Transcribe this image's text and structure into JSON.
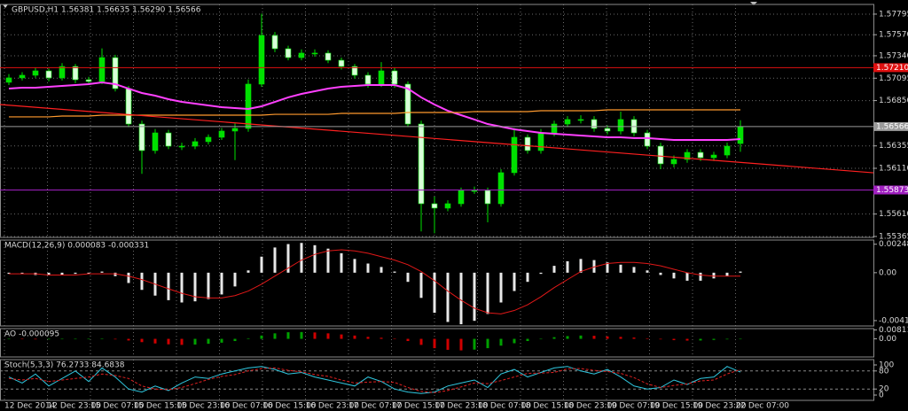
{
  "chart_data": [
    {
      "type": "candlestick",
      "title": "GBPUSD,H1  1.56381 1.56635 1.56290 1.56566",
      "up_color": "#00e000",
      "down_color": "#d8ffd8",
      "open": [
        1.5705,
        1.57098,
        1.57127,
        1.57175,
        1.57098,
        1.57223,
        1.57078,
        1.57059,
        1.5732,
        1.56981,
        1.56594,
        1.56304,
        1.56497,
        1.56352,
        1.56352,
        1.56401,
        1.56449,
        1.56517,
        1.56546,
        1.5703,
        1.57562,
        1.57417,
        1.5732,
        1.57369,
        1.57369,
        1.57291,
        1.57223,
        1.57127,
        1.5703,
        1.57175,
        1.5703,
        1.56594,
        1.55723,
        1.55675,
        1.55723,
        1.55868,
        1.55868,
        1.55723,
        1.56062,
        1.56449,
        1.56304,
        1.56497,
        1.56594,
        1.56643,
        1.56643,
        1.56546,
        1.56517,
        1.56643,
        1.56497,
        1.56352,
        1.56159,
        1.56207,
        1.56284,
        1.56226,
        1.56255,
        1.56381
      ],
      "high": [
        1.5714,
        1.5716,
        1.5721,
        1.572,
        1.5726,
        1.5725,
        1.5711,
        1.5742,
        1.5735,
        1.5701,
        1.5663,
        1.5654,
        1.5653,
        1.5639,
        1.5644,
        1.5648,
        1.5655,
        1.566,
        1.5708,
        1.578,
        1.576,
        1.5745,
        1.5741,
        1.5741,
        1.574,
        1.5732,
        1.5725,
        1.5716,
        1.5727,
        1.5721,
        1.5706,
        1.5663,
        1.558,
        1.5576,
        1.559,
        1.5591,
        1.559,
        1.561,
        1.5655,
        1.5648,
        1.5654,
        1.5663,
        1.5668,
        1.5669,
        1.5668,
        1.5658,
        1.5673,
        1.5668,
        1.5653,
        1.5639,
        1.5625,
        1.5632,
        1.5632,
        1.5629,
        1.5639,
        1.56635
      ],
      "low": [
        1.5702,
        1.5707,
        1.571,
        1.5706,
        1.5707,
        1.5704,
        1.5702,
        1.5703,
        1.5695,
        1.5656,
        1.5605,
        1.5627,
        1.5632,
        1.5631,
        1.5632,
        1.5637,
        1.5642,
        1.562,
        1.5651,
        1.57,
        1.5738,
        1.5729,
        1.5729,
        1.5733,
        1.5726,
        1.5719,
        1.5709,
        1.5699,
        1.57,
        1.5699,
        1.5656,
        1.5542,
        1.554,
        1.5564,
        1.5569,
        1.5583,
        1.5552,
        1.5569,
        1.5603,
        1.5627,
        1.5627,
        1.5646,
        1.5656,
        1.566,
        1.5651,
        1.5648,
        1.5648,
        1.5646,
        1.5632,
        1.561,
        1.5612,
        1.5617,
        1.5619,
        1.5619,
        1.5622,
        1.5629
      ],
      "close": [
        1.57098,
        1.57127,
        1.57175,
        1.57098,
        1.57223,
        1.57078,
        1.57059,
        1.5732,
        1.56981,
        1.56594,
        1.56304,
        1.56497,
        1.56352,
        1.56352,
        1.56401,
        1.56449,
        1.56517,
        1.56546,
        1.5703,
        1.57562,
        1.57417,
        1.5732,
        1.57369,
        1.57369,
        1.57291,
        1.57223,
        1.57127,
        1.5703,
        1.57175,
        1.5703,
        1.56594,
        1.55723,
        1.55675,
        1.55723,
        1.55868,
        1.55868,
        1.55723,
        1.56062,
        1.56449,
        1.56304,
        1.56497,
        1.56594,
        1.56643,
        1.56643,
        1.56546,
        1.56517,
        1.56643,
        1.56497,
        1.56352,
        1.56159,
        1.56207,
        1.56284,
        1.56226,
        1.56255,
        1.56352,
        1.56566
      ],
      "series": [
        {
          "color": "#ff40ff",
          "values": [
            1.56981,
            1.56991,
            1.56991,
            1.57001,
            1.5701,
            1.5702,
            1.5703,
            1.57049,
            1.5703,
            1.56981,
            1.56933,
            1.56904,
            1.56865,
            1.56836,
            1.56817,
            1.56797,
            1.56778,
            1.56768,
            1.56759,
            1.56788,
            1.56836,
            1.56885,
            1.56923,
            1.56952,
            1.56981,
            1.57001,
            1.5701,
            1.5702,
            1.5702,
            1.5702,
            1.56981,
            1.56885,
            1.56807,
            1.56739,
            1.56691,
            1.56643,
            1.56594,
            1.56565,
            1.56536,
            1.56517,
            1.56497,
            1.56488,
            1.56478,
            1.56468,
            1.56459,
            1.56449,
            1.56449,
            1.5644,
            1.5644,
            1.5643,
            1.5642,
            1.5642,
            1.5642,
            1.5642,
            1.5642,
            1.5643
          ]
        },
        {
          "color": "#ff9a2e",
          "values": [
            1.56672,
            1.56672,
            1.56672,
            1.56672,
            1.56681,
            1.56681,
            1.56681,
            1.56691,
            1.56691,
            1.56691,
            1.56691,
            1.56691,
            1.56691,
            1.56691,
            1.56691,
            1.56691,
            1.56691,
            1.56691,
            1.56691,
            1.56691,
            1.567,
            1.567,
            1.567,
            1.567,
            1.567,
            1.5671,
            1.5671,
            1.5671,
            1.5671,
            1.5671,
            1.5672,
            1.5672,
            1.5672,
            1.5672,
            1.5672,
            1.5673,
            1.5673,
            1.5673,
            1.5673,
            1.5673,
            1.56739,
            1.56739,
            1.56739,
            1.56739,
            1.56739,
            1.56749,
            1.56749,
            1.56749,
            1.56749,
            1.56749,
            1.56749,
            1.56749,
            1.56749,
            1.56749,
            1.56749,
            1.56749
          ]
        }
      ],
      "trendline": {
        "color": "#ff2020",
        "values": [
          1.56807,
          1.56061
        ]
      },
      "hlines": [
        {
          "value": 1.5721,
          "label": "1.57210",
          "color": "#e01010"
        },
        {
          "value": 1.56566,
          "label": "1.56566",
          "color": "#9a9a9a"
        },
        {
          "value": 1.55873,
          "label": "1.55873",
          "color": "#a020c0"
        }
      ],
      "ylim": [
        1.55355,
        1.57901
      ],
      "yticks": [
        1.57795,
        {
          "value": 1.5757,
          "label": "1.57570"
        },
        {
          "value": 1.5734,
          "label": "1.57340"
        },
        1.57095,
        {
          "value": 1.5685,
          "label": "1.56850"
        },
        1.56355,
        {
          "value": 1.5611,
          "label": "1.56110"
        },
        {
          "value": 1.5561,
          "label": "1.55610"
        },
        1.55365
      ],
      "grid": true,
      "x_labels": [
        "12 Dec 2014",
        "12 Dec 23:00",
        "15 Dec 07:00",
        "15 Dec 15:00",
        "15 Dec 23:00",
        "16 Dec 07:00",
        "16 Dec 15:00",
        "16 Dec 23:00",
        "17 Dec 07:00",
        "17 Dec 15:00",
        "17 Dec 23:00",
        "18 Dec 07:00",
        "18 Dec 15:00",
        "18 Dec 23:00",
        "19 Dec 07:00",
        "19 Dec 15:00",
        "19 Dec 23:00",
        "22 Dec 07:00"
      ]
    },
    {
      "type": "macd",
      "title": "MACD(12,26,9) 0.000083 -0.000331",
      "series": [
        {
          "color": "#e8e8e8",
          "values": [
            -0.0001,
            -0.0001,
            -0.0002,
            -0.0002,
            -0.0002,
            -0.0001,
            -0.0001,
            0.0001,
            -0.0003,
            -0.0009,
            -0.0015,
            -0.002,
            -0.0024,
            -0.0026,
            -0.0025,
            -0.0023,
            -0.0019,
            -0.0012,
            0.0002,
            0.0014,
            0.0022,
            0.0025,
            0.0026,
            0.0024,
            0.0021,
            0.0017,
            0.0012,
            0.0008,
            0.0005,
            0.0001,
            -0.0008,
            -0.0022,
            -0.0035,
            -0.0043,
            -0.0045,
            -0.0042,
            -0.0036,
            -0.0026,
            -0.0016,
            -0.0008,
            -0.0001,
            0.0006,
            0.001,
            0.0012,
            0.0011,
            0.0009,
            0.0007,
            0.0005,
            0.0002,
            -0.0002,
            -0.0005,
            -0.0007,
            -0.0007,
            -0.0005,
            -0.0003,
            0.0001
          ]
        },
        {
          "color": "#e01818",
          "values": [
            -0.0001,
            -0.0001,
            -0.0001,
            -0.0002,
            -0.0002,
            -0.0002,
            -0.0001,
            -0.0001,
            -0.0001,
            -0.0003,
            -0.0006,
            -0.001,
            -0.0014,
            -0.0018,
            -0.0021,
            -0.0022,
            -0.0022,
            -0.002,
            -0.0016,
            -0.001,
            -0.0003,
            0.0004,
            0.0011,
            0.0016,
            0.0019,
            0.002,
            0.0019,
            0.0017,
            0.0014,
            0.0011,
            0.0007,
            0.0001,
            -0.0007,
            -0.0016,
            -0.0024,
            -0.0031,
            -0.0035,
            -0.0036,
            -0.0033,
            -0.0028,
            -0.0021,
            -0.0013,
            -0.0006,
            0.0001,
            0.0005,
            0.0008,
            0.0009,
            0.0009,
            0.0008,
            0.0006,
            0.0003,
            0,
            -0.0002,
            -0.0003,
            -0.0003,
            -0.0003
          ]
        }
      ],
      "ylim": [
        -0.00465,
        0.00285
      ],
      "yticks": [
        0.002485,
        {
          "value": 0,
          "label": "0.00"
        },
        -0.004182
      ]
    },
    {
      "type": "ao",
      "title": "AO -0.000095",
      "up_color": "#00a000",
      "down_color": "#d00000",
      "values": [
        -0.0003,
        -0.0004,
        -0.0005,
        -0.0005,
        -0.0004,
        -0.0003,
        -0.0002,
        0.0001,
        -0.0005,
        -0.0015,
        -0.003,
        -0.0042,
        -0.005,
        -0.0055,
        -0.0052,
        -0.0045,
        -0.0035,
        -0.002,
        0.0005,
        0.003,
        0.005,
        0.006,
        0.0062,
        0.0058,
        0.005,
        0.004,
        0.003,
        0.0018,
        0.001,
        0.0002,
        -0.002,
        -0.0055,
        -0.0085,
        -0.01,
        -0.0105,
        -0.0098,
        -0.0085,
        -0.0062,
        -0.004,
        -0.002,
        -0.0003,
        0.0015,
        0.0025,
        0.003,
        0.0028,
        0.0022,
        0.0018,
        0.0012,
        0.0005,
        -0.0005,
        -0.0012,
        -0.0016,
        -0.0015,
        -0.001,
        -0.0005,
        -0.0001
      ],
      "ylim": [
        -0.0165,
        0.0093
      ],
      "yticks": [
        0.008113,
        {
          "value": 0,
          "label": "0.00"
        }
      ]
    },
    {
      "type": "stoch",
      "title": "Stoch(5,3,3) 76.2733 84.6838",
      "series": [
        {
          "color": "#30c8e0",
          "dash": false,
          "values": [
            60,
            40,
            70,
            30,
            55,
            80,
            45,
            90,
            60,
            20,
            10,
            30,
            15,
            40,
            60,
            55,
            70,
            80,
            90,
            95,
            85,
            70,
            75,
            60,
            50,
            40,
            30,
            60,
            45,
            20,
            10,
            5,
            10,
            30,
            40,
            50,
            25,
            70,
            85,
            60,
            75,
            90,
            95,
            80,
            70,
            85,
            60,
            30,
            20,
            25,
            50,
            35,
            55,
            60,
            95,
            76.2733
          ]
        },
        {
          "color": "#e02020",
          "dash": true,
          "values": [
            55,
            50,
            55,
            45,
            50,
            55,
            60,
            70,
            65,
            55,
            30,
            20,
            18,
            25,
            38,
            52,
            62,
            68,
            80,
            88,
            90,
            82,
            77,
            68,
            62,
            50,
            40,
            43,
            45,
            42,
            25,
            12,
            8,
            15,
            27,
            40,
            38,
            48,
            60,
            72,
            73,
            75,
            87,
            88,
            82,
            78,
            72,
            58,
            37,
            25,
            32,
            37,
            47,
            50,
            70,
            84.6838
          ]
        }
      ],
      "ylim": [
        0,
        100
      ],
      "yticks": [
        100,
        80,
        20,
        0
      ],
      "levels": [
        80,
        20
      ]
    }
  ]
}
